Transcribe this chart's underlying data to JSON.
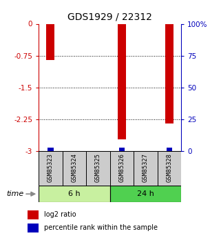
{
  "title": "GDS1929 / 22312",
  "samples": [
    "GSM85323",
    "GSM85324",
    "GSM85325",
    "GSM85326",
    "GSM85327",
    "GSM85328"
  ],
  "log2_ratio": [
    -0.85,
    0.0,
    0.0,
    -2.72,
    0.0,
    -2.35
  ],
  "percentile_rank": [
    2.0,
    0.0,
    0.0,
    2.0,
    0.0,
    2.0
  ],
  "ylim_left": [
    -3,
    0
  ],
  "ylim_right": [
    0,
    100
  ],
  "left_ticks": [
    0,
    -0.75,
    -1.5,
    -2.25,
    -3
  ],
  "right_ticks": [
    0,
    25,
    50,
    75,
    100
  ],
  "groups": [
    {
      "label": "6 h",
      "indices": [
        0,
        1,
        2
      ],
      "color": "#C8F0A0"
    },
    {
      "label": "24 h",
      "indices": [
        3,
        4,
        5
      ],
      "color": "#50D050"
    }
  ],
  "bar_color_red": "#CC0000",
  "bar_color_blue": "#0000BB",
  "bar_width": 0.35,
  "sample_box_color": "#CCCCCC",
  "left_axis_color": "#CC0000",
  "right_axis_color": "#0000BB",
  "title_fontsize": 10,
  "tick_fontsize": 7.5,
  "label_fontsize": 8,
  "legend_fontsize": 7
}
